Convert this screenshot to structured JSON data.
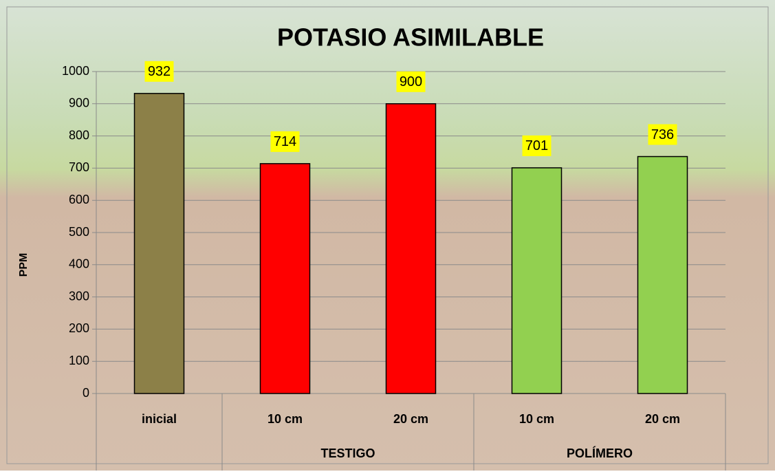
{
  "chart_data": {
    "type": "bar",
    "title": "POTASIO ASIMILABLE",
    "y_label": "PPM",
    "categories": [
      "inicial",
      "10 cm",
      "20 cm",
      "10 cm",
      "20 cm"
    ],
    "groups": [
      {
        "name": "TESTIGO",
        "first": 1,
        "count": 2
      },
      {
        "name": "POLÍMERO",
        "first": 3,
        "count": 2
      }
    ],
    "values": [
      932,
      714,
      900,
      701,
      736
    ],
    "colors": [
      "#8c8048",
      "#ff0000",
      "#ff0000",
      "#92d050",
      "#92d050"
    ],
    "ylim": [
      0,
      1000
    ],
    "yticks": [
      0,
      100,
      200,
      300,
      400,
      500,
      600,
      700,
      800,
      900,
      1000
    ],
    "grid": true
  }
}
